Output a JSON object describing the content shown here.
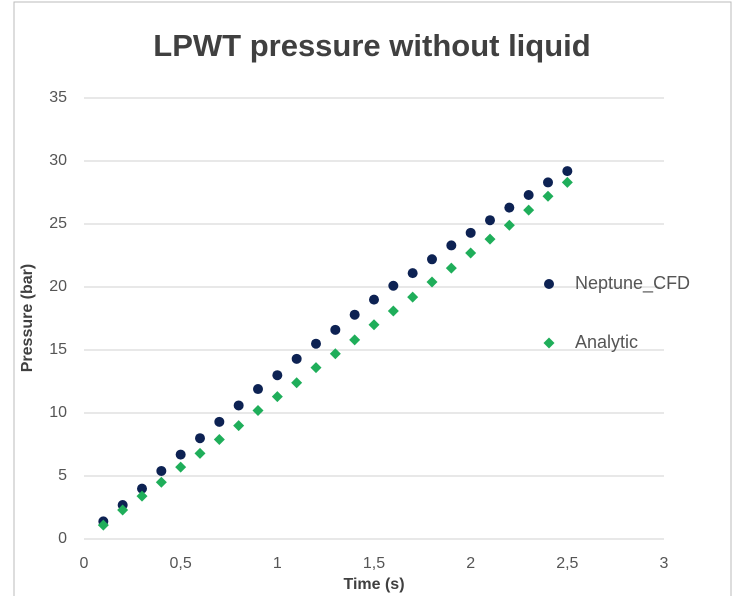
{
  "chart_data": {
    "type": "scatter",
    "title": "LPWT pressure without liquid",
    "x_label": "Time (s)",
    "y_label": "Pressure (bar)",
    "x": [
      0.1,
      0.2,
      0.3,
      0.4,
      0.5,
      0.6,
      0.7,
      0.8,
      0.9,
      1.0,
      1.1,
      1.2,
      1.3,
      1.4,
      1.5,
      1.6,
      1.7,
      1.8,
      1.9,
      2.0,
      2.1,
      2.2,
      2.3,
      2.4,
      2.5
    ],
    "series": [
      {
        "name": "Neptune_CFD",
        "color": "#0d2253",
        "marker": "circle",
        "values": [
          1.4,
          2.7,
          4.0,
          5.4,
          6.7,
          8.0,
          9.3,
          10.6,
          11.9,
          13.0,
          14.3,
          15.5,
          16.6,
          17.8,
          19.0,
          20.1,
          21.1,
          22.2,
          23.3,
          24.3,
          25.3,
          26.3,
          27.3,
          28.3,
          29.2
        ]
      },
      {
        "name": "Analytic",
        "color": "#1fae5a",
        "marker": "diamond",
        "values": [
          1.1,
          2.3,
          3.4,
          4.5,
          5.7,
          6.8,
          7.9,
          9.0,
          10.2,
          11.3,
          12.4,
          13.6,
          14.7,
          15.8,
          17.0,
          18.1,
          19.2,
          20.4,
          21.5,
          22.7,
          23.8,
          24.9,
          26.1,
          27.2,
          28.3
        ]
      }
    ],
    "xlim": [
      0,
      3
    ],
    "xticks": [
      0,
      {
        "value": 0.5,
        "label": "0,5"
      },
      1,
      {
        "value": 1.5,
        "label": "1,5"
      },
      2,
      {
        "value": 2.5,
        "label": "2,5"
      },
      3
    ],
    "ylim": [
      0,
      35
    ],
    "yticks": [
      0,
      5,
      10,
      15,
      20,
      25,
      30,
      35
    ],
    "grid": true,
    "legend": "right"
  }
}
